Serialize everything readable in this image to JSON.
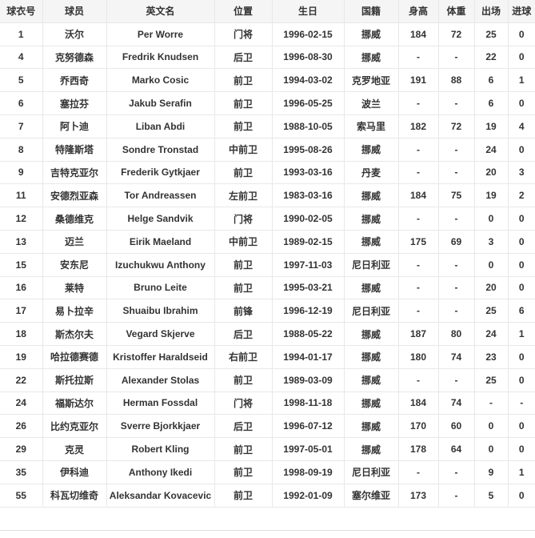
{
  "colors": {
    "header_bg": "#f5f5f5",
    "border": "#e8e8e8",
    "text": "#333333",
    "row_bg": "#ffffff"
  },
  "table": {
    "headers": [
      "球衣号",
      "球员",
      "英文名",
      "位置",
      "生日",
      "国籍",
      "身高",
      "体重",
      "出场",
      "进球"
    ],
    "rows": [
      [
        "1",
        "沃尔",
        "Per Worre",
        "门将",
        "1996-02-15",
        "挪威",
        "184",
        "72",
        "25",
        "0"
      ],
      [
        "4",
        "克努德森",
        "Fredrik Knudsen",
        "后卫",
        "1996-08-30",
        "挪威",
        "-",
        "-",
        "22",
        "0"
      ],
      [
        "5",
        "乔西奇",
        "Marko Cosic",
        "前卫",
        "1994-03-02",
        "克罗地亚",
        "191",
        "88",
        "6",
        "1"
      ],
      [
        "6",
        "塞拉芬",
        "Jakub Serafin",
        "前卫",
        "1996-05-25",
        "波兰",
        "-",
        "-",
        "6",
        "0"
      ],
      [
        "7",
        "阿卜迪",
        "Liban Abdi",
        "前卫",
        "1988-10-05",
        "索马里",
        "182",
        "72",
        "19",
        "4"
      ],
      [
        "8",
        "特隆斯塔",
        "Sondre Tronstad",
        "中前卫",
        "1995-08-26",
        "挪威",
        "-",
        "-",
        "24",
        "0"
      ],
      [
        "9",
        "吉特克亚尔",
        "Frederik Gytkjaer",
        "前卫",
        "1993-03-16",
        "丹麦",
        "-",
        "-",
        "20",
        "3"
      ],
      [
        "11",
        "安德烈亚森",
        "Tor Andreassen",
        "左前卫",
        "1983-03-16",
        "挪威",
        "184",
        "75",
        "19",
        "2"
      ],
      [
        "12",
        "桑德维克",
        "Helge Sandvik",
        "门将",
        "1990-02-05",
        "挪威",
        "-",
        "-",
        "0",
        "0"
      ],
      [
        "13",
        "迈兰",
        "Eirik Maeland",
        "中前卫",
        "1989-02-15",
        "挪威",
        "175",
        "69",
        "3",
        "0"
      ],
      [
        "15",
        "安东尼",
        "Izuchukwu Anthony",
        "前卫",
        "1997-11-03",
        "尼日利亚",
        "-",
        "-",
        "0",
        "0"
      ],
      [
        "16",
        "莱特",
        "Bruno Leite",
        "前卫",
        "1995-03-21",
        "挪威",
        "-",
        "-",
        "20",
        "0"
      ],
      [
        "17",
        "易卜拉辛",
        "Shuaibu Ibrahim",
        "前锋",
        "1996-12-19",
        "尼日利亚",
        "-",
        "-",
        "25",
        "6"
      ],
      [
        "18",
        "斯杰尔夫",
        "Vegard Skjerve",
        "后卫",
        "1988-05-22",
        "挪威",
        "187",
        "80",
        "24",
        "1"
      ],
      [
        "19",
        "哈拉德赛德",
        "Kristoffer Haraldseid",
        "右前卫",
        "1994-01-17",
        "挪威",
        "180",
        "74",
        "23",
        "0"
      ],
      [
        "22",
        "斯托拉斯",
        "Alexander Stolas",
        "前卫",
        "1989-03-09",
        "挪威",
        "-",
        "-",
        "25",
        "0"
      ],
      [
        "24",
        "福斯达尔",
        "Herman Fossdal",
        "门将",
        "1998-11-18",
        "挪威",
        "184",
        "74",
        "-",
        "-"
      ],
      [
        "26",
        "比约克亚尔",
        "Sverre Bjorkkjaer",
        "后卫",
        "1996-07-12",
        "挪威",
        "170",
        "60",
        "0",
        "0"
      ],
      [
        "29",
        "克灵",
        "Robert Kling",
        "前卫",
        "1997-05-01",
        "挪威",
        "178",
        "64",
        "0",
        "0"
      ],
      [
        "35",
        "伊科迪",
        "Anthony Ikedi",
        "前卫",
        "1998-09-19",
        "尼日利亚",
        "-",
        "-",
        "9",
        "1"
      ],
      [
        "55",
        "科瓦切维奇",
        "Aleksandar Kovacevic",
        "前卫",
        "1992-01-09",
        "塞尔维亚",
        "173",
        "-",
        "5",
        "0"
      ]
    ]
  }
}
